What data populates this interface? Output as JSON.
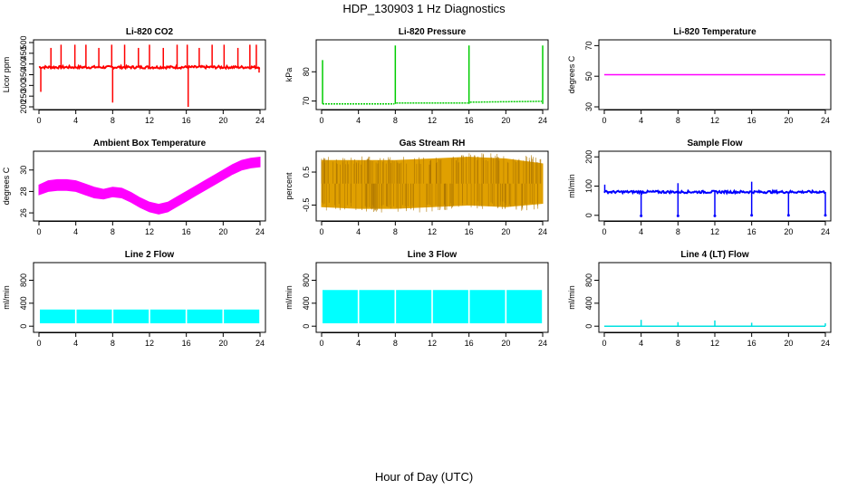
{
  "page": {
    "title": "HDP_130903 1 Hz Diagnostics",
    "xlabel": "Hour of Day (UTC)"
  },
  "chart_data": [
    {
      "type": "line",
      "title": "Li-820 CO2",
      "ylabel": "Licor ppm",
      "color": "#ff0000",
      "xlim": [
        0,
        24
      ],
      "ylim": [
        200,
        500
      ],
      "xticks": [
        "0",
        "4",
        "8",
        "12",
        "16",
        "20",
        "24"
      ],
      "yticks": [
        "200",
        "250",
        "300",
        "350",
        "400",
        "450",
        "500"
      ],
      "baseline": 385,
      "noise": 6,
      "spikes": [
        {
          "x": 0.2,
          "y": 270
        },
        {
          "x": 1.3,
          "y": 475
        },
        {
          "x": 2.4,
          "y": 490
        },
        {
          "x": 3.9,
          "y": 490
        },
        {
          "x": 5.1,
          "y": 490
        },
        {
          "x": 6.5,
          "y": 475
        },
        {
          "x": 7.9,
          "y": 490
        },
        {
          "x": 8.0,
          "y": 220
        },
        {
          "x": 9.3,
          "y": 490
        },
        {
          "x": 10.8,
          "y": 475
        },
        {
          "x": 12.0,
          "y": 490
        },
        {
          "x": 13.5,
          "y": 475
        },
        {
          "x": 15.0,
          "y": 490
        },
        {
          "x": 16.1,
          "y": 490
        },
        {
          "x": 16.2,
          "y": 200
        },
        {
          "x": 17.4,
          "y": 475
        },
        {
          "x": 18.8,
          "y": 490
        },
        {
          "x": 20.1,
          "y": 490
        },
        {
          "x": 21.6,
          "y": 475
        },
        {
          "x": 22.9,
          "y": 490
        },
        {
          "x": 23.6,
          "y": 490
        },
        {
          "x": 23.9,
          "y": 360
        }
      ]
    },
    {
      "type": "line",
      "title": "Li-820 Pressure",
      "ylabel": "kPa",
      "color": "#00cc00",
      "xlim": [
        0,
        24
      ],
      "ylim": [
        68,
        90
      ],
      "xticks": [
        "0",
        "4",
        "8",
        "12",
        "16",
        "20",
        "24"
      ],
      "yticks": [
        "70",
        "80"
      ],
      "segments": [
        {
          "x0": 0.1,
          "x1": 7.9,
          "y0": 69.0,
          "y1": 69.0
        },
        {
          "x0": 8.1,
          "x1": 15.9,
          "y0": 69.3,
          "y1": 69.3
        },
        {
          "x0": 16.1,
          "x1": 23.9,
          "y0": 69.6,
          "y1": 69.9
        }
      ],
      "spikes": [
        {
          "x": 0.1,
          "y": 84
        },
        {
          "x": 8.0,
          "y": 89
        },
        {
          "x": 16.0,
          "y": 89
        },
        {
          "x": 24.0,
          "y": 89
        }
      ]
    },
    {
      "type": "line",
      "title": "Li-820 Temperature",
      "ylabel": "degrees C",
      "color": "#ff00ff",
      "xlim": [
        0,
        24
      ],
      "ylim": [
        30,
        72
      ],
      "xticks": [
        "0",
        "4",
        "8",
        "12",
        "16",
        "20",
        "24"
      ],
      "yticks": [
        "30",
        "50",
        "70"
      ],
      "segments": [
        {
          "x0": 0,
          "x1": 24,
          "y0": 51,
          "y1": 51
        }
      ]
    },
    {
      "type": "area",
      "title": "Ambient Box Temperature",
      "ylabel": "degrees C",
      "color": "#ff00ff",
      "xlim": [
        0,
        24
      ],
      "ylim": [
        25.5,
        31.5
      ],
      "xticks": [
        "0",
        "4",
        "8",
        "12",
        "16",
        "20",
        "24"
      ],
      "yticks": [
        "26",
        "28",
        "30"
      ],
      "x": [
        0,
        1,
        2,
        3,
        4,
        5,
        6,
        7,
        8,
        9,
        10,
        11,
        12,
        13,
        14,
        15,
        16,
        17,
        18,
        19,
        20,
        21,
        22,
        23,
        24
      ],
      "lo": [
        27.7,
        28.0,
        28.1,
        28.1,
        28.0,
        27.7,
        27.4,
        27.3,
        27.5,
        27.4,
        27.0,
        26.5,
        26.1,
        25.9,
        26.1,
        26.6,
        27.1,
        27.6,
        28.1,
        28.6,
        29.1,
        29.6,
        30.0,
        30.2,
        30.3
      ],
      "hi": [
        28.6,
        29.0,
        29.1,
        29.1,
        29.0,
        28.7,
        28.4,
        28.2,
        28.4,
        28.3,
        27.9,
        27.4,
        27.0,
        26.8,
        27.0,
        27.5,
        28.0,
        28.5,
        29.0,
        29.5,
        30.0,
        30.5,
        30.9,
        31.1,
        31.2
      ]
    },
    {
      "type": "area",
      "title": "Gas Stream RH",
      "ylabel": "percent",
      "color": "#e0a000",
      "xlim": [
        0,
        24
      ],
      "ylim": [
        -0.9,
        1.05
      ],
      "xticks": [
        "0",
        "4",
        "8",
        "12",
        "16",
        "20",
        "24"
      ],
      "yticks": [
        "-0.5",
        "0.5"
      ],
      "x": [
        0,
        4,
        8,
        12,
        16,
        20,
        24
      ],
      "lo": [
        -0.55,
        -0.6,
        -0.6,
        -0.55,
        -0.5,
        -0.55,
        -0.45
      ],
      "hi": [
        0.85,
        0.85,
        0.85,
        0.9,
        0.95,
        0.9,
        0.75
      ]
    },
    {
      "type": "line",
      "title": "Sample Flow",
      "ylabel": "ml/min",
      "color": "#0000ff",
      "xlim": [
        0,
        24
      ],
      "ylim": [
        -10,
        210
      ],
      "xticks": [
        "0",
        "4",
        "8",
        "12",
        "16",
        "20",
        "24"
      ],
      "yticks": [
        "0",
        "100",
        "200"
      ],
      "baseline": 80,
      "noise": 4,
      "spikes": [
        {
          "x": 0.05,
          "y": 105
        },
        {
          "x": 8.0,
          "y": 110
        },
        {
          "x": 16.0,
          "y": 115
        }
      ],
      "dips": [
        {
          "x": 4.0,
          "y": -2
        },
        {
          "x": 8.0,
          "y": -2
        },
        {
          "x": 12.0,
          "y": -2
        },
        {
          "x": 16.0,
          "y": 0
        },
        {
          "x": 20.0,
          "y": 0
        },
        {
          "x": 24.0,
          "y": 0
        }
      ]
    },
    {
      "type": "area",
      "title": "Line 2 Flow",
      "ylabel": "ml/min",
      "color": "#00ffff",
      "xlim": [
        0,
        24
      ],
      "ylim": [
        -60,
        1060
      ],
      "xticks": [
        "0",
        "4",
        "8",
        "12",
        "16",
        "20",
        "24"
      ],
      "yticks": [
        "0",
        "400",
        "800"
      ],
      "x": [
        0.1,
        24
      ],
      "lo": [
        50,
        50
      ],
      "hi": [
        290,
        290
      ],
      "gaps": [
        4.0,
        8.0,
        12.0,
        16.0,
        20.0
      ]
    },
    {
      "type": "area",
      "title": "Line 3 Flow",
      "ylabel": "ml/min",
      "color": "#00ffff",
      "xlim": [
        0,
        24
      ],
      "ylim": [
        -60,
        1060
      ],
      "xticks": [
        "0",
        "4",
        "8",
        "12",
        "16",
        "20",
        "24"
      ],
      "yticks": [
        "0",
        "400",
        "800"
      ],
      "x": [
        0.1,
        24
      ],
      "lo": [
        50,
        50
      ],
      "hi": [
        630,
        630
      ],
      "gaps": [
        4.0,
        8.0,
        12.0,
        16.0,
        20.0
      ]
    },
    {
      "type": "line",
      "title": "Line 4 (LT) Flow",
      "ylabel": "ml/min",
      "color": "#00e0e0",
      "xlim": [
        0,
        24
      ],
      "ylim": [
        -60,
        1060
      ],
      "xticks": [
        "0",
        "4",
        "8",
        "12",
        "16",
        "20",
        "24"
      ],
      "yticks": [
        "0",
        "400",
        "800"
      ],
      "segments": [
        {
          "x0": 0,
          "x1": 24,
          "y0": 0,
          "y1": 0
        }
      ],
      "spikes": [
        {
          "x": 4.0,
          "y": 110
        },
        {
          "x": 8.0,
          "y": 70
        },
        {
          "x": 12.0,
          "y": 100
        },
        {
          "x": 16.0,
          "y": 60
        },
        {
          "x": 24.0,
          "y": 50
        }
      ]
    }
  ]
}
